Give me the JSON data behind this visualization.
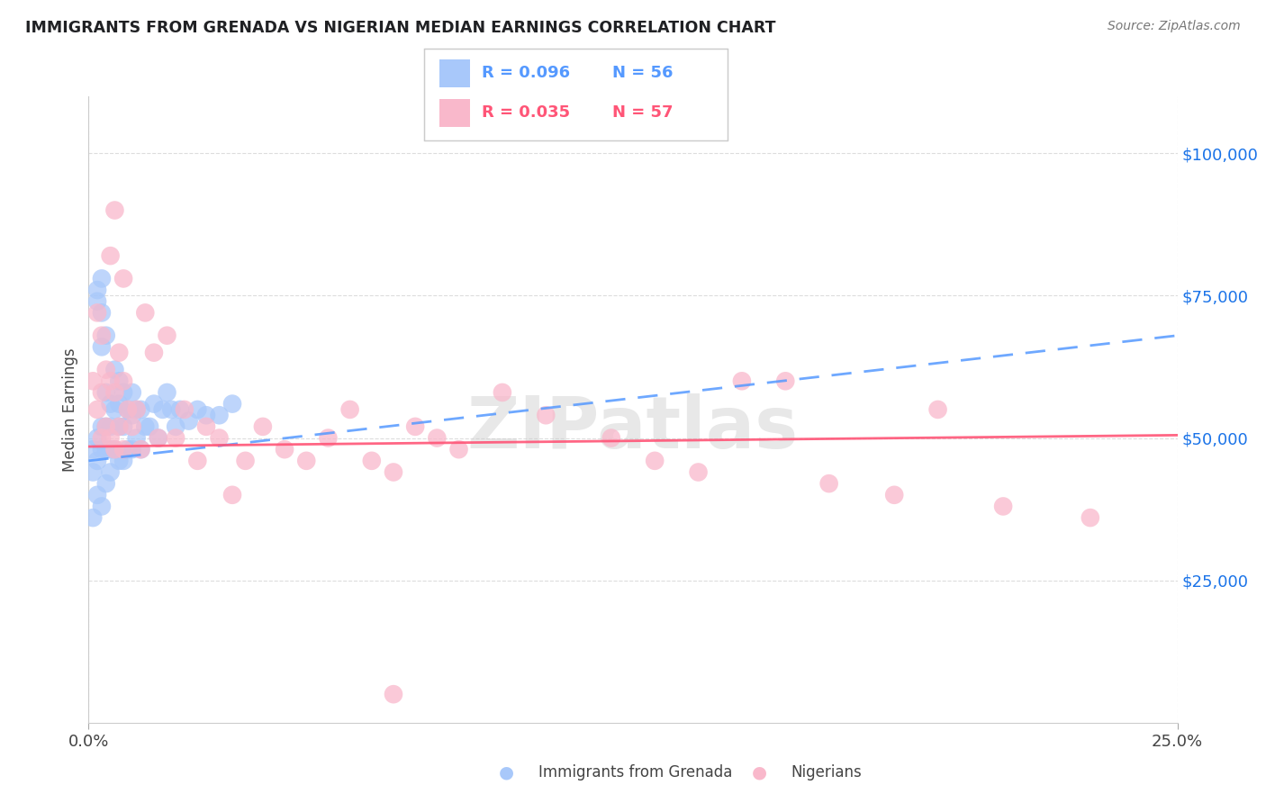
{
  "title": "IMMIGRANTS FROM GRENADA VS NIGERIAN MEDIAN EARNINGS CORRELATION CHART",
  "source": "Source: ZipAtlas.com",
  "ylabel": "Median Earnings",
  "xlim": [
    0.0,
    0.25
  ],
  "ylim": [
    0,
    110000
  ],
  "yticks": [
    25000,
    50000,
    75000,
    100000
  ],
  "ytick_labels": [
    "$25,000",
    "$50,000",
    "$75,000",
    "$100,000"
  ],
  "xtick_labels": [
    "0.0%",
    "25.0%"
  ],
  "grenada_R": "R = 0.096",
  "grenada_N": "N = 56",
  "nigerian_R": "R = 0.035",
  "nigerian_N": "N = 57",
  "color_blue": "#a8c8fa",
  "color_pink": "#f9b8cb",
  "color_blue_dark": "#5599ff",
  "color_pink_dark": "#ff5577",
  "color_ytick": "#1a73e8",
  "color_title": "#202124",
  "watermark": "ZIPatlas",
  "grenada_x": [
    0.001,
    0.001,
    0.002,
    0.002,
    0.002,
    0.002,
    0.003,
    0.003,
    0.003,
    0.003,
    0.003,
    0.004,
    0.004,
    0.004,
    0.004,
    0.005,
    0.005,
    0.005,
    0.005,
    0.006,
    0.006,
    0.006,
    0.007,
    0.007,
    0.007,
    0.007,
    0.008,
    0.008,
    0.008,
    0.009,
    0.009,
    0.01,
    0.01,
    0.01,
    0.011,
    0.011,
    0.012,
    0.012,
    0.013,
    0.014,
    0.015,
    0.016,
    0.017,
    0.018,
    0.019,
    0.02,
    0.021,
    0.023,
    0.025,
    0.027,
    0.03,
    0.033,
    0.001,
    0.002,
    0.003,
    0.004
  ],
  "grenada_y": [
    48000,
    44000,
    76000,
    74000,
    50000,
    46000,
    78000,
    72000,
    66000,
    52000,
    48000,
    68000,
    58000,
    52000,
    48000,
    56000,
    52000,
    48000,
    44000,
    62000,
    55000,
    48000,
    60000,
    56000,
    52000,
    46000,
    58000,
    52000,
    46000,
    55000,
    48000,
    58000,
    54000,
    48000,
    55000,
    50000,
    55000,
    48000,
    52000,
    52000,
    56000,
    50000,
    55000,
    58000,
    55000,
    52000,
    55000,
    53000,
    55000,
    54000,
    54000,
    56000,
    36000,
    40000,
    38000,
    42000
  ],
  "nigerian_x": [
    0.001,
    0.002,
    0.002,
    0.003,
    0.003,
    0.003,
    0.004,
    0.004,
    0.005,
    0.005,
    0.006,
    0.006,
    0.007,
    0.007,
    0.008,
    0.008,
    0.009,
    0.01,
    0.011,
    0.012,
    0.013,
    0.015,
    0.016,
    0.018,
    0.02,
    0.022,
    0.025,
    0.027,
    0.03,
    0.033,
    0.036,
    0.04,
    0.045,
    0.05,
    0.055,
    0.06,
    0.065,
    0.07,
    0.075,
    0.08,
    0.085,
    0.095,
    0.105,
    0.12,
    0.13,
    0.14,
    0.15,
    0.16,
    0.17,
    0.185,
    0.195,
    0.21,
    0.23,
    0.005,
    0.008,
    0.006,
    0.07
  ],
  "nigerian_y": [
    60000,
    72000,
    55000,
    68000,
    58000,
    50000,
    62000,
    52000,
    60000,
    50000,
    58000,
    48000,
    65000,
    52000,
    60000,
    48000,
    55000,
    52000,
    55000,
    48000,
    72000,
    65000,
    50000,
    68000,
    50000,
    55000,
    46000,
    52000,
    50000,
    40000,
    46000,
    52000,
    48000,
    46000,
    50000,
    55000,
    46000,
    44000,
    52000,
    50000,
    48000,
    58000,
    54000,
    50000,
    46000,
    44000,
    60000,
    60000,
    42000,
    40000,
    55000,
    38000,
    36000,
    82000,
    78000,
    90000,
    5000
  ],
  "grenada_line_x0": 0.0,
  "grenada_line_y0": 46000,
  "grenada_line_x1": 0.25,
  "grenada_line_y1": 68000,
  "nigerian_line_x0": 0.0,
  "nigerian_line_y0": 48500,
  "nigerian_line_x1": 0.25,
  "nigerian_line_y1": 50500
}
